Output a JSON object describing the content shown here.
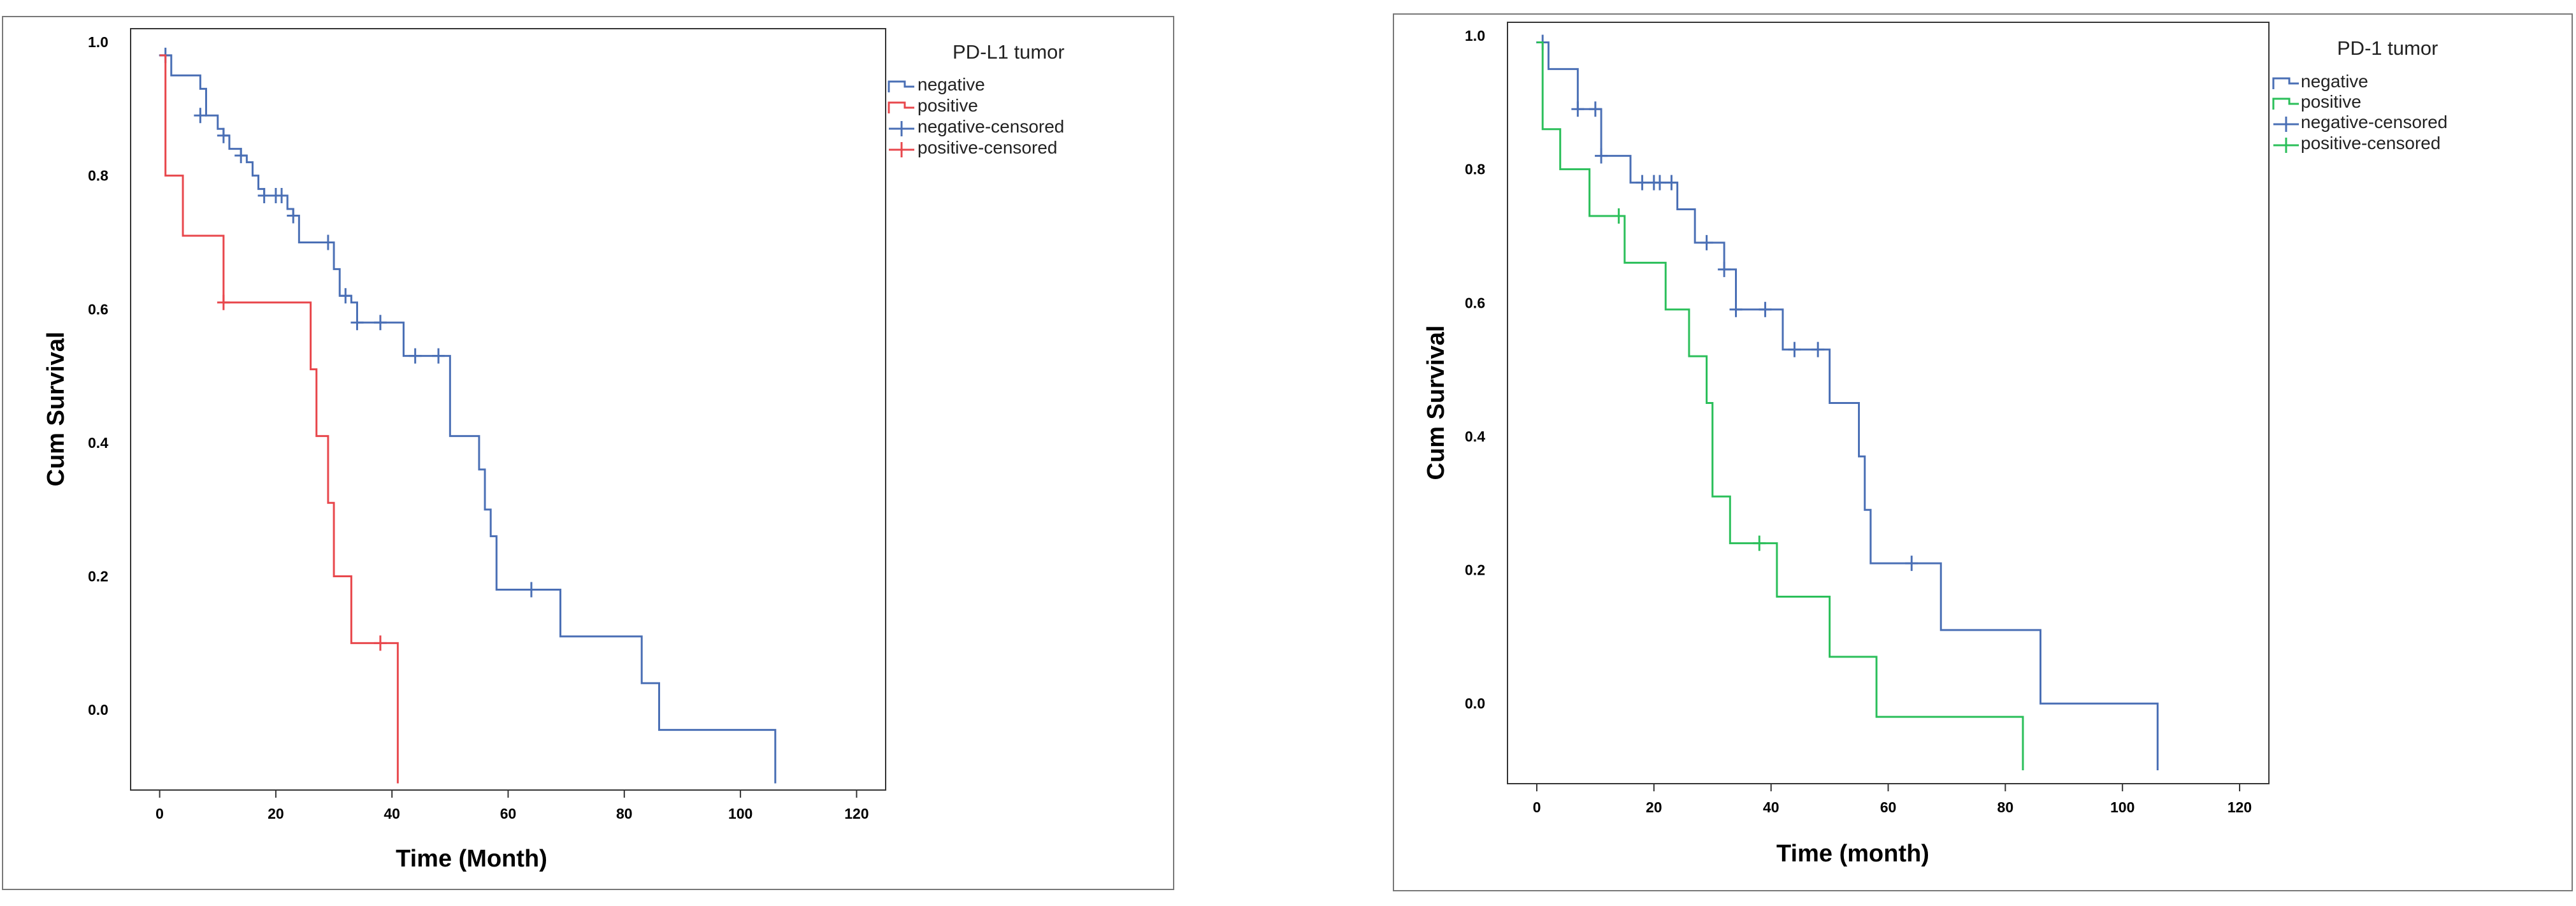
{
  "chart_data": [
    {
      "type": "line",
      "subtype": "kaplan-meier",
      "title": "",
      "xlabel": "Time (Month)",
      "ylabel": "Cum Survival",
      "xlim": [
        -5,
        125
      ],
      "ylim": [
        -0.12,
        1.02
      ],
      "xticks": [
        0,
        20,
        40,
        60,
        80,
        100,
        120
      ],
      "yticks": [
        0.0,
        0.2,
        0.4,
        0.6,
        0.8,
        1.0
      ],
      "xtick_labels": [
        "0",
        "20",
        "40",
        "60",
        "80",
        "100",
        "120"
      ],
      "ytick_labels": [
        "0.0",
        "0.2",
        "0.4",
        "0.6",
        "0.8",
        "1.0"
      ],
      "grid": false,
      "legend_position": "top-right",
      "legend_title": "PD-L1 tumor",
      "legend": [
        "negative",
        "positive",
        "negative-censored",
        "positive-censored"
      ],
      "series": [
        {
          "name": "negative",
          "color": "#4a6fb5",
          "steps": [
            [
              0,
              0.98
            ],
            [
              2,
              0.95
            ],
            [
              7,
              0.93
            ],
            [
              8,
              0.89
            ],
            [
              10,
              0.87
            ],
            [
              11,
              0.86
            ],
            [
              12,
              0.84
            ],
            [
              14,
              0.83
            ],
            [
              15,
              0.82
            ],
            [
              16,
              0.8
            ],
            [
              17,
              0.78
            ],
            [
              18,
              0.77
            ],
            [
              22,
              0.75
            ],
            [
              23,
              0.74
            ],
            [
              24,
              0.7
            ],
            [
              29,
              0.7
            ],
            [
              30,
              0.66
            ],
            [
              31,
              0.62
            ],
            [
              33,
              0.61
            ],
            [
              34,
              0.58
            ],
            [
              39,
              0.58
            ],
            [
              42,
              0.53
            ],
            [
              49,
              0.53
            ],
            [
              50,
              0.41
            ],
            [
              55,
              0.36
            ],
            [
              56,
              0.3
            ],
            [
              57,
              0.26
            ],
            [
              58,
              0.18
            ],
            [
              69,
              0.11
            ],
            [
              83,
              0.04
            ],
            [
              86,
              -0.03
            ],
            [
              106,
              -0.03
            ],
            [
              106,
              -0.11
            ]
          ],
          "censored": [
            [
              1,
              0.98
            ],
            [
              7,
              0.89
            ],
            [
              11,
              0.86
            ],
            [
              14,
              0.83
            ],
            [
              18,
              0.77
            ],
            [
              20,
              0.77
            ],
            [
              21,
              0.77
            ],
            [
              23,
              0.74
            ],
            [
              29,
              0.7
            ],
            [
              32,
              0.62
            ],
            [
              34,
              0.58
            ],
            [
              38,
              0.58
            ],
            [
              44,
              0.53
            ],
            [
              48,
              0.53
            ],
            [
              64,
              0.18
            ]
          ]
        },
        {
          "name": "positive",
          "color": "#e8474c",
          "steps": [
            [
              0,
              0.98
            ],
            [
              1,
              0.8
            ],
            [
              4,
              0.71
            ],
            [
              11,
              0.61
            ],
            [
              26,
              0.51
            ],
            [
              27,
              0.41
            ],
            [
              29,
              0.31
            ],
            [
              30,
              0.2
            ],
            [
              33,
              0.1
            ],
            [
              41,
              0.1
            ],
            [
              41,
              -0.11
            ]
          ],
          "censored": [
            [
              11,
              0.61
            ],
            [
              38,
              0.1
            ]
          ]
        }
      ]
    },
    {
      "type": "line",
      "subtype": "kaplan-meier",
      "title": "",
      "xlabel": "Time (month)",
      "ylabel": "Cum Survival",
      "xlim": [
        -5,
        125
      ],
      "ylim": [
        -0.12,
        1.02
      ],
      "xticks": [
        0,
        20,
        40,
        60,
        80,
        100,
        120
      ],
      "yticks": [
        0.0,
        0.2,
        0.4,
        0.6,
        0.8,
        1.0
      ],
      "xtick_labels": [
        "0",
        "20",
        "40",
        "60",
        "80",
        "100",
        "120"
      ],
      "ytick_labels": [
        "0.0",
        "0.2",
        "0.4",
        "0.6",
        "0.8",
        "1.0"
      ],
      "grid": false,
      "legend_position": "top-right",
      "legend_title": "PD-1 tumor",
      "legend": [
        "negative",
        "positive",
        "negative-censored",
        "positive-censored"
      ],
      "series": [
        {
          "name": "negative",
          "color": "#4a6fb5",
          "steps": [
            [
              0,
              0.99
            ],
            [
              2,
              0.95
            ],
            [
              7,
              0.89
            ],
            [
              11,
              0.82
            ],
            [
              16,
              0.78
            ],
            [
              24,
              0.74
            ],
            [
              27,
              0.69
            ],
            [
              32,
              0.65
            ],
            [
              34,
              0.59
            ],
            [
              40,
              0.59
            ],
            [
              42,
              0.53
            ],
            [
              50,
              0.45
            ],
            [
              55,
              0.37
            ],
            [
              56,
              0.29
            ],
            [
              57,
              0.21
            ],
            [
              69,
              0.11
            ],
            [
              86,
              0.0
            ],
            [
              106,
              0.0
            ],
            [
              106,
              -0.1
            ]
          ],
          "censored": [
            [
              1,
              0.99
            ],
            [
              7,
              0.89
            ],
            [
              10,
              0.89
            ],
            [
              11,
              0.82
            ],
            [
              18,
              0.78
            ],
            [
              20,
              0.78
            ],
            [
              21,
              0.78
            ],
            [
              23,
              0.78
            ],
            [
              29,
              0.69
            ],
            [
              32,
              0.65
            ],
            [
              34,
              0.59
            ],
            [
              39,
              0.59
            ],
            [
              44,
              0.53
            ],
            [
              48,
              0.53
            ],
            [
              64,
              0.21
            ]
          ]
        },
        {
          "name": "positive",
          "color": "#2bbf5a",
          "steps": [
            [
              0,
              0.99
            ],
            [
              1,
              0.86
            ],
            [
              4,
              0.8
            ],
            [
              9,
              0.73
            ],
            [
              15,
              0.66
            ],
            [
              22,
              0.59
            ],
            [
              26,
              0.52
            ],
            [
              29,
              0.45
            ],
            [
              30,
              0.31
            ],
            [
              33,
              0.24
            ],
            [
              41,
              0.16
            ],
            [
              50,
              0.07
            ],
            [
              58,
              -0.02
            ],
            [
              83,
              -0.02
            ],
            [
              83,
              -0.1
            ]
          ],
          "censored": [
            [
              14,
              0.73
            ],
            [
              38,
              0.24
            ]
          ]
        }
      ]
    }
  ]
}
